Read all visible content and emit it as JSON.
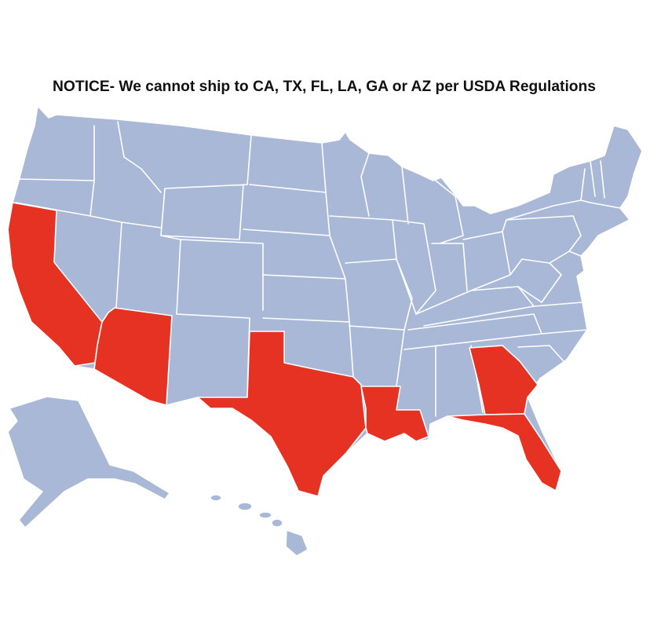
{
  "notice": "NOTICE- We cannot ship to CA, TX, FL, LA, GA or AZ per USDA Regulations"
}
